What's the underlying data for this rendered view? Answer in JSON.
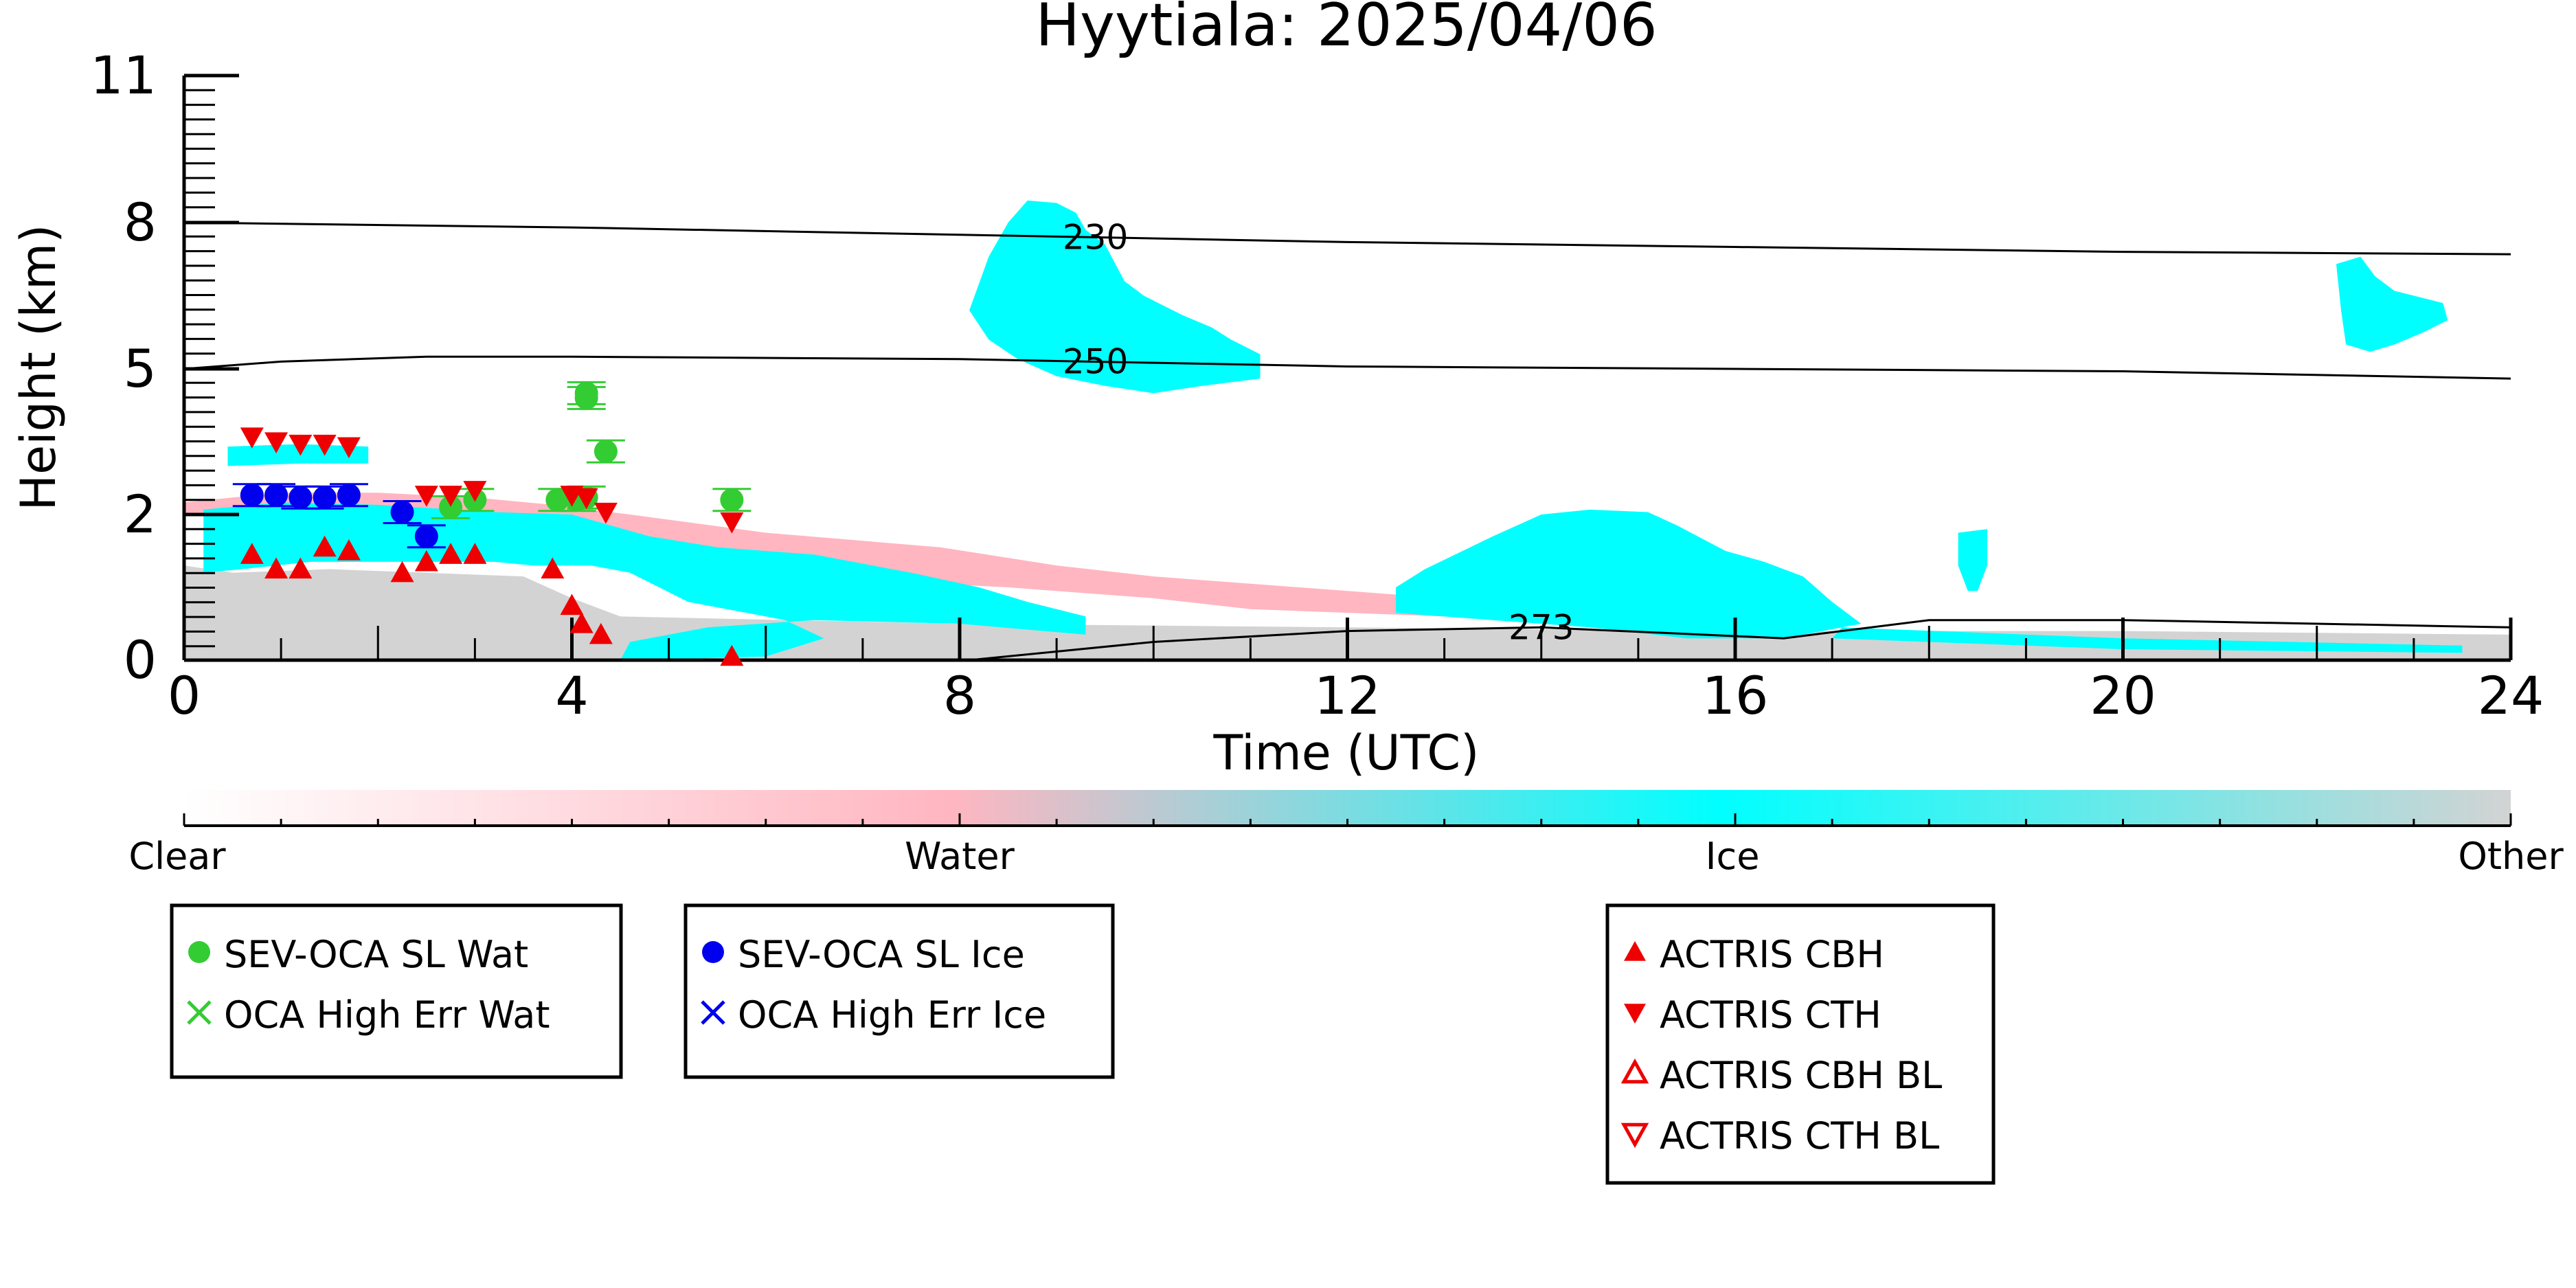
{
  "chart_data": {
    "type": "heatmap",
    "title": "Hyytiala: 2025/04/06",
    "xlabel": "Time (UTC)",
    "ylabel": "Height (km)",
    "xlim": [
      0,
      24
    ],
    "ylim": [
      0,
      11
    ],
    "x_ticks": [
      0,
      4,
      8,
      12,
      16,
      20,
      24
    ],
    "y_ticks": [
      0,
      2,
      5,
      8,
      11
    ],
    "y_tick_labels": [
      "0",
      "2",
      "5",
      "8",
      "11"
    ],
    "y_scale": "nonlinear",
    "colorbar": {
      "labels": [
        "Clear",
        "Water",
        "Ice",
        "Other"
      ],
      "stops": [
        {
          "pos": 0.0,
          "color": "#ffffff"
        },
        {
          "pos": 0.33,
          "color": "#ffb6c1"
        },
        {
          "pos": 0.66,
          "color": "#00ffff"
        },
        {
          "pos": 1.0,
          "color": "#d3d3d3"
        }
      ]
    },
    "colors": {
      "water": "#ffb6c1",
      "ice": "#00ffff",
      "other": "#d3d3d3",
      "sev_wat": "#33cc33",
      "sev_ice": "#0000ee",
      "actris": "#ee0000"
    },
    "temperature_contours": [
      {
        "label": "230",
        "label_x": 9.4,
        "points": [
          [
            0,
            8.0
          ],
          [
            4,
            7.9
          ],
          [
            8,
            7.75
          ],
          [
            12,
            7.6
          ],
          [
            16,
            7.5
          ],
          [
            20,
            7.4
          ],
          [
            24,
            7.35
          ]
        ]
      },
      {
        "label": "250",
        "label_x": 9.4,
        "points": [
          [
            0,
            5.0
          ],
          [
            1,
            5.15
          ],
          [
            2.5,
            5.25
          ],
          [
            4,
            5.25
          ],
          [
            8,
            5.2
          ],
          [
            12,
            5.05
          ],
          [
            16,
            5.0
          ],
          [
            20,
            4.95
          ],
          [
            24,
            4.8
          ]
        ]
      },
      {
        "label": "273",
        "label_x": 14.0,
        "points": [
          [
            8.1,
            0.0
          ],
          [
            10,
            0.25
          ],
          [
            12,
            0.4
          ],
          [
            14,
            0.45
          ],
          [
            16.5,
            0.3
          ],
          [
            18,
            0.55
          ],
          [
            20,
            0.55
          ],
          [
            22,
            0.5
          ],
          [
            24,
            0.45
          ]
        ]
      }
    ],
    "series": [
      {
        "name": "SEV-OCA SL Wat",
        "marker": "circle",
        "color": "#33cc33",
        "points": [
          [
            2.75,
            2.15
          ],
          [
            3.0,
            2.3
          ],
          [
            3.85,
            2.3
          ],
          [
            4.05,
            2.3
          ],
          [
            4.15,
            2.35
          ],
          [
            4.15,
            4.4
          ],
          [
            4.15,
            4.5
          ],
          [
            4.35,
            3.3
          ],
          [
            5.65,
            2.3
          ]
        ]
      },
      {
        "name": "OCA High Err Wat",
        "marker": "x",
        "color": "#33cc33",
        "points": []
      },
      {
        "name": "SEV-OCA SL Ice",
        "marker": "circle",
        "color": "#0000ee",
        "points": [
          [
            0.7,
            2.4
          ],
          [
            0.95,
            2.4
          ],
          [
            1.2,
            2.35
          ],
          [
            1.45,
            2.35
          ],
          [
            1.7,
            2.4
          ],
          [
            2.25,
            2.05
          ],
          [
            2.5,
            1.7
          ]
        ]
      },
      {
        "name": "OCA High Err Ice",
        "marker": "x",
        "color": "#0000ee",
        "points": []
      },
      {
        "name": "ACTRIS CBH",
        "marker": "triangle-up",
        "color": "#ee0000",
        "points": [
          [
            0.7,
            1.45
          ],
          [
            0.95,
            1.25
          ],
          [
            1.2,
            1.25
          ],
          [
            1.45,
            1.55
          ],
          [
            1.7,
            1.5
          ],
          [
            2.25,
            1.2
          ],
          [
            2.5,
            1.35
          ],
          [
            2.75,
            1.45
          ],
          [
            3.0,
            1.45
          ],
          [
            3.8,
            1.25
          ],
          [
            4.0,
            0.75
          ],
          [
            4.1,
            0.5
          ],
          [
            4.3,
            0.35
          ],
          [
            5.65,
            0.05
          ]
        ]
      },
      {
        "name": "ACTRIS CTH",
        "marker": "triangle-down",
        "color": "#ee0000",
        "points": [
          [
            0.7,
            3.6
          ],
          [
            0.95,
            3.5
          ],
          [
            1.2,
            3.45
          ],
          [
            1.45,
            3.45
          ],
          [
            1.7,
            3.4
          ],
          [
            2.5,
            2.4
          ],
          [
            2.75,
            2.4
          ],
          [
            3.0,
            2.5
          ],
          [
            4.0,
            2.4
          ],
          [
            4.15,
            2.35
          ],
          [
            4.35,
            2.05
          ],
          [
            5.65,
            1.9
          ]
        ]
      },
      {
        "name": "ACTRIS CBH BL",
        "marker": "triangle-up-open",
        "color": "#ee0000",
        "points": []
      },
      {
        "name": "ACTRIS CTH BL",
        "marker": "triangle-down-open",
        "color": "#ee0000",
        "points": []
      }
    ],
    "cloud_regions": [
      {
        "class": "other",
        "polygon": [
          [
            0,
            0
          ],
          [
            0,
            1.3
          ],
          [
            0.5,
            1.2
          ],
          [
            1.5,
            1.25
          ],
          [
            2.5,
            1.2
          ],
          [
            3.5,
            1.15
          ],
          [
            4,
            0.85
          ],
          [
            4.5,
            0.6
          ],
          [
            8,
            0.5
          ],
          [
            12,
            0.45
          ],
          [
            16,
            0.4
          ],
          [
            20,
            0.4
          ],
          [
            24,
            0.35
          ],
          [
            24,
            0
          ]
        ]
      },
      {
        "class": "water",
        "polygon": [
          [
            0,
            2.25
          ],
          [
            1,
            2.45
          ],
          [
            2,
            2.45
          ],
          [
            3,
            2.35
          ],
          [
            3.8,
            2.2
          ],
          [
            4.6,
            2.0
          ],
          [
            6,
            1.75
          ],
          [
            7.8,
            1.55
          ],
          [
            9,
            1.3
          ],
          [
            10,
            1.15
          ],
          [
            11,
            1.05
          ],
          [
            12,
            0.95
          ],
          [
            13,
            0.85
          ],
          [
            15,
            0.7
          ],
          [
            15.5,
            0.6
          ],
          [
            13,
            0.6
          ],
          [
            11,
            0.7
          ],
          [
            10,
            0.85
          ],
          [
            8.5,
            1.0
          ],
          [
            7,
            1.1
          ],
          [
            6,
            1.35
          ],
          [
            4.5,
            1.6
          ],
          [
            3,
            1.9
          ],
          [
            1.5,
            2.05
          ],
          [
            0,
            2.0
          ]
        ]
      },
      {
        "class": "ice",
        "polygon": [
          [
            0.2,
            1.2
          ],
          [
            0.2,
            2.1
          ],
          [
            1,
            2.25
          ],
          [
            2,
            2.2
          ],
          [
            3.2,
            2.05
          ],
          [
            4,
            2.0
          ],
          [
            4.8,
            1.7
          ],
          [
            5.5,
            1.55
          ],
          [
            6.5,
            1.45
          ],
          [
            7.5,
            1.2
          ],
          [
            8.2,
            1.0
          ],
          [
            8.7,
            0.8
          ],
          [
            9.3,
            0.6
          ],
          [
            9.3,
            0.35
          ],
          [
            8,
            0.5
          ],
          [
            6.5,
            0.55
          ],
          [
            5.4,
            0.45
          ],
          [
            4.6,
            0.25
          ],
          [
            4.5,
            0
          ],
          [
            4.7,
            0
          ],
          [
            6.0,
            0.05
          ],
          [
            6.6,
            0.3
          ],
          [
            6.2,
            0.55
          ],
          [
            5.2,
            0.8
          ],
          [
            4.6,
            1.2
          ],
          [
            4.2,
            1.3
          ],
          [
            3.6,
            1.3
          ],
          [
            3.2,
            1.35
          ],
          [
            2.5,
            1.35
          ],
          [
            2.0,
            1.35
          ],
          [
            1.3,
            1.35
          ],
          [
            0.6,
            1.25
          ]
        ]
      },
      {
        "class": "ice",
        "polygon": [
          [
            0.45,
            3.0
          ],
          [
            0.45,
            3.4
          ],
          [
            1.2,
            3.45
          ],
          [
            1.9,
            3.4
          ],
          [
            1.9,
            3.05
          ],
          [
            1.2,
            3.05
          ]
        ]
      },
      {
        "class": "ice",
        "polygon": [
          [
            12.8,
            1.25
          ],
          [
            13.5,
            1.7
          ],
          [
            14,
            2.0
          ],
          [
            14.5,
            2.1
          ],
          [
            15.1,
            2.05
          ],
          [
            15.4,
            1.85
          ],
          [
            15.9,
            1.5
          ],
          [
            16.3,
            1.35
          ],
          [
            16.7,
            1.15
          ],
          [
            17.0,
            0.8
          ],
          [
            17.3,
            0.5
          ],
          [
            16.5,
            0.3
          ],
          [
            15.5,
            0.3
          ],
          [
            14.5,
            0.45
          ],
          [
            13.5,
            0.55
          ],
          [
            12.5,
            0.65
          ],
          [
            12.5,
            1.0
          ]
        ]
      },
      {
        "class": "ice",
        "polygon": [
          [
            8.1,
            6.2
          ],
          [
            8.3,
            7.3
          ],
          [
            8.5,
            8.0
          ],
          [
            8.7,
            8.45
          ],
          [
            9.0,
            8.4
          ],
          [
            9.2,
            8.2
          ],
          [
            9.3,
            7.85
          ],
          [
            9.5,
            7.55
          ],
          [
            9.7,
            6.8
          ],
          [
            9.9,
            6.5
          ],
          [
            10.3,
            6.1
          ],
          [
            10.6,
            5.85
          ],
          [
            10.8,
            5.6
          ],
          [
            11.1,
            5.3
          ],
          [
            11.1,
            4.8
          ],
          [
            10.5,
            4.65
          ],
          [
            10.0,
            4.5
          ],
          [
            9.5,
            4.65
          ],
          [
            9.0,
            4.85
          ],
          [
            8.6,
            5.2
          ],
          [
            8.3,
            5.6
          ]
        ]
      },
      {
        "class": "ice",
        "polygon": [
          [
            22.2,
            7.15
          ],
          [
            22.45,
            7.3
          ],
          [
            22.6,
            6.9
          ],
          [
            22.8,
            6.6
          ],
          [
            23.1,
            6.45
          ],
          [
            23.3,
            6.35
          ],
          [
            23.35,
            6.0
          ],
          [
            23.1,
            5.75
          ],
          [
            22.8,
            5.5
          ],
          [
            22.55,
            5.35
          ],
          [
            22.3,
            5.5
          ],
          [
            22.25,
            6.2
          ]
        ]
      },
      {
        "class": "ice",
        "polygon": [
          [
            18.3,
            1.75
          ],
          [
            18.6,
            1.8
          ],
          [
            18.6,
            1.3
          ],
          [
            18.5,
            0.95
          ],
          [
            18.4,
            0.95
          ],
          [
            18.3,
            1.3
          ]
        ]
      },
      {
        "class": "ice",
        "polygon": [
          [
            17.1,
            0.45
          ],
          [
            20,
            0.3
          ],
          [
            23.5,
            0.2
          ],
          [
            23.5,
            0.1
          ],
          [
            20,
            0.15
          ],
          [
            17.0,
            0.3
          ]
        ]
      }
    ],
    "legends": [
      {
        "entries": [
          {
            "label": "SEV-OCA SL Wat",
            "marker": "circle",
            "color": "#33cc33"
          },
          {
            "label": "OCA High Err Wat",
            "marker": "x",
            "color": "#33cc33"
          }
        ]
      },
      {
        "entries": [
          {
            "label": "SEV-OCA SL Ice",
            "marker": "circle",
            "color": "#0000ee"
          },
          {
            "label": "OCA High Err Ice",
            "marker": "x",
            "color": "#0000ee"
          }
        ]
      },
      {
        "entries": [
          {
            "label": "ACTRIS CBH",
            "marker": "triangle-up",
            "color": "#ee0000"
          },
          {
            "label": "ACTRIS CTH",
            "marker": "triangle-down",
            "color": "#ee0000"
          },
          {
            "label": "ACTRIS CBH BL",
            "marker": "triangle-up-open",
            "color": "#ee0000"
          },
          {
            "label": "ACTRIS CTH BL",
            "marker": "triangle-down-open",
            "color": "#ee0000"
          }
        ]
      }
    ]
  }
}
